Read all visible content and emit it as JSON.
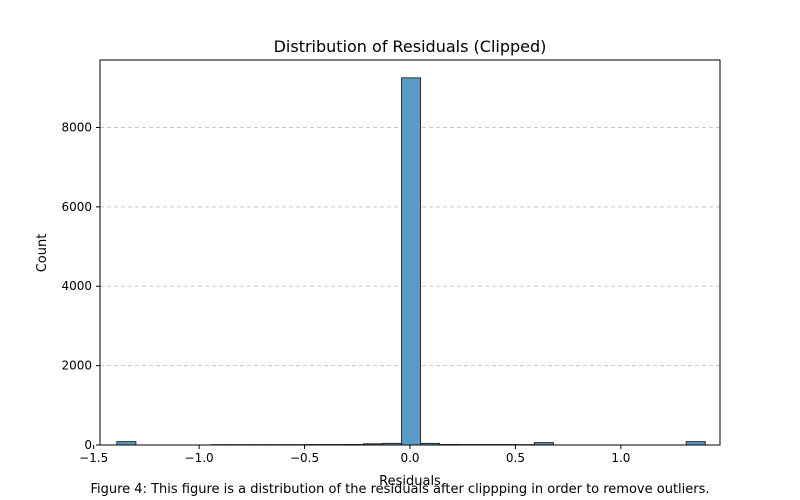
{
  "chart_data": {
    "type": "bar",
    "title": "Distribution of Residuals (Clipped)",
    "xlabel": "Residuals",
    "ylabel": "Count",
    "xlim": [
      -1.47,
      1.47
    ],
    "ylim": [
      0,
      9700
    ],
    "xticks": [
      -1.5,
      -1.0,
      -0.5,
      0.0,
      0.5,
      1.0
    ],
    "xtick_labels": [
      "−1.5",
      "−1.0",
      "−0.5",
      "0.0",
      "0.5",
      "1.0"
    ],
    "yticks": [
      0,
      2000,
      4000,
      6000,
      8000
    ],
    "ytick_labels": [
      "0",
      "2000",
      "4000",
      "6000",
      "8000"
    ],
    "grid": "y-dashed",
    "bar_color": "#5b9bc8",
    "bar_edge_color": "#2a2a2a",
    "bins": [
      {
        "x0": -1.39,
        "x1": -1.3,
        "count": 85
      },
      {
        "x0": -1.3,
        "x1": -1.21,
        "count": 0
      },
      {
        "x0": -1.21,
        "x1": -1.12,
        "count": 0
      },
      {
        "x0": -1.12,
        "x1": -1.03,
        "count": 0
      },
      {
        "x0": -1.03,
        "x1": -0.94,
        "count": 0
      },
      {
        "x0": -0.94,
        "x1": -0.85,
        "count": 8
      },
      {
        "x0": -0.85,
        "x1": -0.76,
        "count": 8
      },
      {
        "x0": -0.76,
        "x1": -0.67,
        "count": 8
      },
      {
        "x0": -0.67,
        "x1": -0.58,
        "count": 8
      },
      {
        "x0": -0.58,
        "x1": -0.49,
        "count": 8
      },
      {
        "x0": -0.49,
        "x1": -0.4,
        "count": 10
      },
      {
        "x0": -0.4,
        "x1": -0.31,
        "count": 10
      },
      {
        "x0": -0.31,
        "x1": -0.22,
        "count": 12
      },
      {
        "x0": -0.22,
        "x1": -0.13,
        "count": 30
      },
      {
        "x0": -0.13,
        "x1": -0.04,
        "count": 40
      },
      {
        "x0": -0.04,
        "x1": 0.05,
        "count": 9250
      },
      {
        "x0": 0.05,
        "x1": 0.14,
        "count": 40
      },
      {
        "x0": 0.14,
        "x1": 0.23,
        "count": 12
      },
      {
        "x0": 0.23,
        "x1": 0.32,
        "count": 10
      },
      {
        "x0": 0.32,
        "x1": 0.41,
        "count": 10
      },
      {
        "x0": 0.41,
        "x1": 0.5,
        "count": 10
      },
      {
        "x0": 0.5,
        "x1": 0.59,
        "count": 8
      },
      {
        "x0": 0.59,
        "x1": 0.68,
        "count": 60
      },
      {
        "x0": 0.68,
        "x1": 0.77,
        "count": 0
      },
      {
        "x0": 0.77,
        "x1": 0.86,
        "count": 0
      },
      {
        "x0": 0.86,
        "x1": 0.95,
        "count": 0
      },
      {
        "x0": 0.95,
        "x1": 1.04,
        "count": 0
      },
      {
        "x0": 1.04,
        "x1": 1.13,
        "count": 0
      },
      {
        "x0": 1.13,
        "x1": 1.22,
        "count": 0
      },
      {
        "x0": 1.22,
        "x1": 1.31,
        "count": 0
      },
      {
        "x0": 1.31,
        "x1": 1.4,
        "count": 85
      }
    ]
  },
  "caption": "Figure 4: This figure is a distribution of the residuals after clippping in order to remove outliers."
}
